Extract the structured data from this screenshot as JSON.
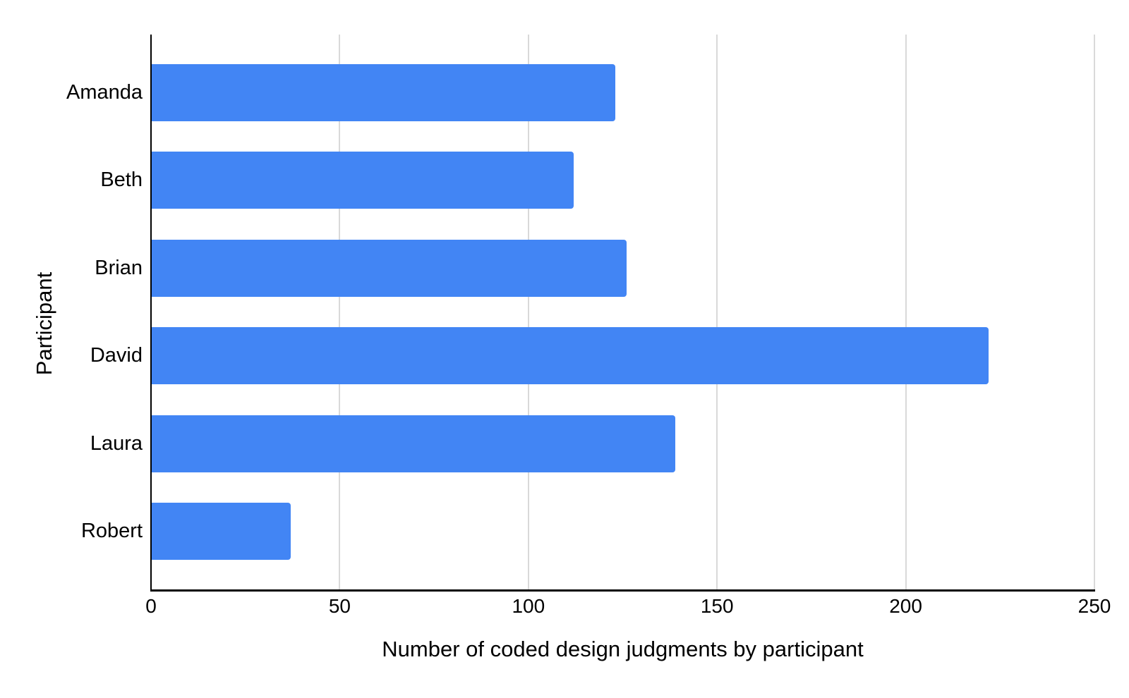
{
  "chart_data": {
    "type": "bar",
    "orientation": "horizontal",
    "title": "",
    "categories": [
      "Amanda",
      "Beth",
      "Brian",
      "David",
      "Laura",
      "Robert"
    ],
    "values": [
      123,
      112,
      126,
      222,
      139,
      37
    ],
    "xlabel": "Number of coded design judgments by participant",
    "ylabel": "Participant",
    "xlim": [
      0,
      250
    ],
    "xticks": [
      0,
      50,
      100,
      150,
      200,
      250
    ],
    "grid": true,
    "legend_position": "none",
    "bar_color": "#4285f4",
    "gridline_color": "#d9d9d9",
    "axis_line_color": "#000000",
    "text_color": "#000000",
    "background_color": "#ffffff"
  }
}
